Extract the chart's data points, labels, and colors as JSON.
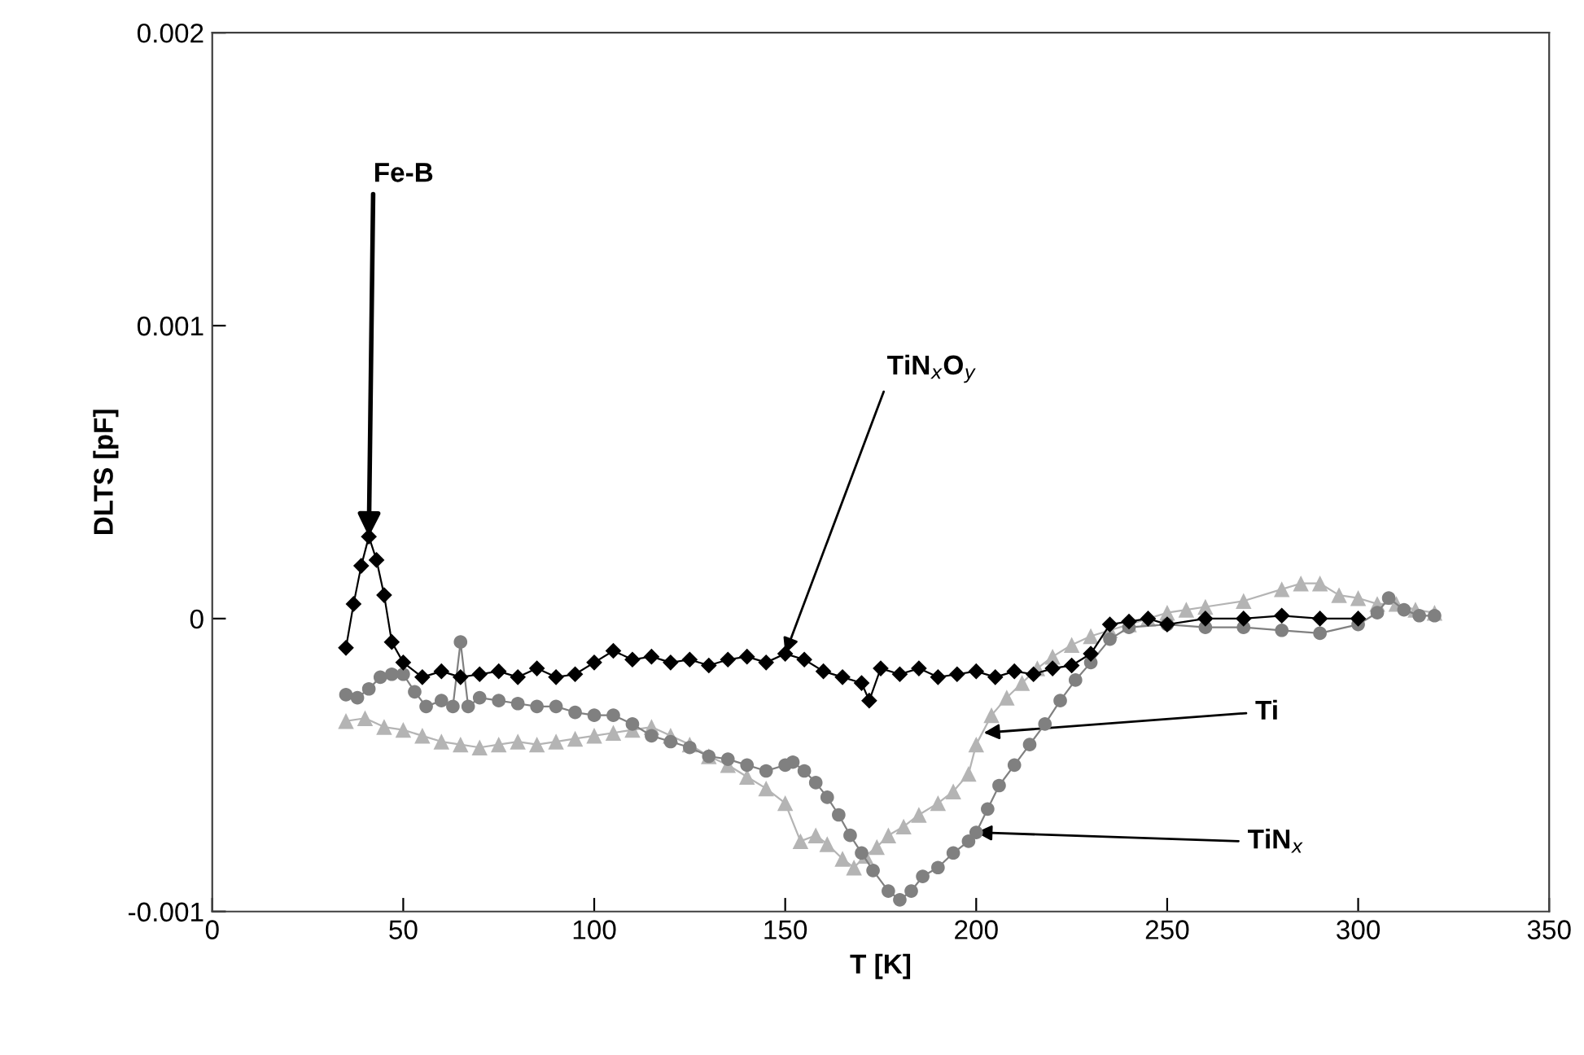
{
  "chart_data": {
    "type": "line",
    "xlabel": "T [K]",
    "ylabel": "DLTS [pF]",
    "xlim": [
      0,
      350
    ],
    "xticks": [
      0,
      50,
      100,
      150,
      200,
      250,
      300,
      350
    ],
    "ylim": [
      -0.001,
      0.002
    ],
    "yticks": [
      -0.001,
      0,
      0.001,
      0.002
    ],
    "grid": false,
    "series": [
      {
        "color": "#000000",
        "marker": "diamond",
        "x": [
          35,
          37,
          39,
          41,
          43,
          45,
          47,
          50,
          55,
          60,
          65,
          70,
          75,
          80,
          85,
          90,
          95,
          100,
          105,
          110,
          115,
          120,
          125,
          130,
          135,
          140,
          145,
          150,
          155,
          160,
          165,
          170,
          172,
          175,
          180,
          185,
          190,
          195,
          200,
          205,
          210,
          215,
          220,
          225,
          230,
          235,
          240,
          245,
          250,
          260,
          270,
          280,
          290,
          300
        ],
        "values": [
          -0.0001,
          5e-05,
          0.00018,
          0.00028,
          0.0002,
          8e-05,
          -8e-05,
          -0.00015,
          -0.0002,
          -0.00018,
          -0.0002,
          -0.00019,
          -0.00018,
          -0.0002,
          -0.00017,
          -0.0002,
          -0.00019,
          -0.00015,
          -0.00011,
          -0.00014,
          -0.00013,
          -0.00015,
          -0.00014,
          -0.00016,
          -0.00014,
          -0.00013,
          -0.00015,
          -0.00012,
          -0.00014,
          -0.00018,
          -0.0002,
          -0.00022,
          -0.00028,
          -0.00017,
          -0.00019,
          -0.00017,
          -0.0002,
          -0.00019,
          -0.00018,
          -0.0002,
          -0.00018,
          -0.00019,
          -0.00017,
          -0.00016,
          -0.00012,
          -2e-05,
          -1e-05,
          0.0,
          -2e-05,
          0.0,
          0.0,
          1e-05,
          0.0,
          0.0
        ]
      },
      {
        "color": "#808080",
        "marker": "circle",
        "x": [
          35,
          38,
          41,
          44,
          47,
          50,
          53,
          56,
          60,
          63,
          65,
          67,
          70,
          75,
          80,
          85,
          90,
          95,
          100,
          105,
          110,
          115,
          120,
          125,
          130,
          135,
          140,
          145,
          150,
          152,
          155,
          158,
          161,
          164,
          167,
          170,
          173,
          177,
          180,
          183,
          186,
          190,
          194,
          198,
          200,
          203,
          206,
          210,
          214,
          218,
          222,
          226,
          230,
          235,
          240,
          250,
          260,
          270,
          280,
          290,
          300,
          305,
          308,
          312,
          316,
          320
        ],
        "values": [
          -0.00026,
          -0.00027,
          -0.00024,
          -0.0002,
          -0.00019,
          -0.00019,
          -0.00025,
          -0.0003,
          -0.00028,
          -0.0003,
          -8e-05,
          -0.0003,
          -0.00027,
          -0.00028,
          -0.00029,
          -0.0003,
          -0.0003,
          -0.00032,
          -0.00033,
          -0.00033,
          -0.00036,
          -0.0004,
          -0.00042,
          -0.00044,
          -0.00047,
          -0.00048,
          -0.0005,
          -0.00052,
          -0.0005,
          -0.00049,
          -0.00052,
          -0.00056,
          -0.00061,
          -0.00067,
          -0.00074,
          -0.0008,
          -0.00086,
          -0.00093,
          -0.00096,
          -0.00093,
          -0.00088,
          -0.00085,
          -0.0008,
          -0.00076,
          -0.00073,
          -0.00065,
          -0.00057,
          -0.0005,
          -0.00043,
          -0.00036,
          -0.00028,
          -0.00021,
          -0.00015,
          -7e-05,
          -3e-05,
          -2e-05,
          -3e-05,
          -3e-05,
          -4e-05,
          -5e-05,
          -2e-05,
          2e-05,
          7e-05,
          3e-05,
          1e-05,
          1e-05
        ]
      },
      {
        "color": "#b4b4b4",
        "marker": "triangle",
        "x": [
          35,
          40,
          45,
          50,
          55,
          60,
          65,
          70,
          75,
          80,
          85,
          90,
          95,
          100,
          105,
          110,
          115,
          120,
          125,
          130,
          135,
          140,
          145,
          150,
          154,
          158,
          161,
          165,
          168,
          171,
          174,
          177,
          181,
          185,
          190,
          194,
          198,
          200,
          204,
          208,
          212,
          216,
          220,
          225,
          230,
          235,
          240,
          245,
          250,
          255,
          260,
          270,
          280,
          285,
          290,
          295,
          300,
          305,
          310,
          315,
          320
        ],
        "values": [
          -0.00035,
          -0.00034,
          -0.00037,
          -0.00038,
          -0.0004,
          -0.00042,
          -0.00043,
          -0.00044,
          -0.00043,
          -0.00042,
          -0.00043,
          -0.00042,
          -0.00041,
          -0.0004,
          -0.00039,
          -0.00038,
          -0.00037,
          -0.0004,
          -0.00043,
          -0.00047,
          -0.0005,
          -0.00054,
          -0.00058,
          -0.00063,
          -0.00076,
          -0.00074,
          -0.00077,
          -0.00082,
          -0.00085,
          -0.00081,
          -0.00078,
          -0.00074,
          -0.00071,
          -0.00067,
          -0.00063,
          -0.00059,
          -0.00053,
          -0.00043,
          -0.00033,
          -0.00027,
          -0.00022,
          -0.00017,
          -0.00013,
          -9e-05,
          -6e-05,
          -4e-05,
          -2e-05,
          0.0,
          2e-05,
          3e-05,
          4e-05,
          6e-05,
          0.0001,
          0.00012,
          0.00012,
          8e-05,
          7e-05,
          5e-05,
          5e-05,
          3e-05,
          2e-05
        ]
      }
    ],
    "annotations": [
      {
        "text": "Fe-B",
        "x": 41,
        "y": 0.00028
      },
      {
        "text": "TiN$_{x}$O$_{y}$",
        "x": 150,
        "y": -0.00012
      },
      {
        "text": "Ti",
        "x": 202,
        "y": -0.00039
      },
      {
        "text": "TiN$_{x}$",
        "x": 200,
        "y": -0.00073
      }
    ]
  }
}
